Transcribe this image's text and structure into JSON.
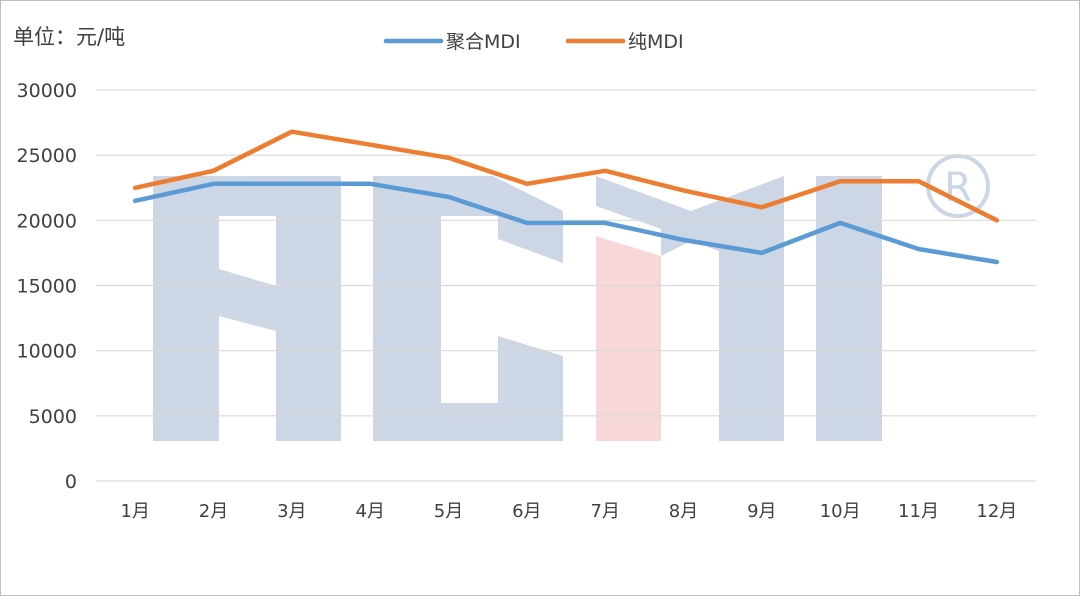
{
  "chart_data": {
    "type": "line",
    "unit_label": "单位：元/吨",
    "categories": [
      "1月",
      "2月",
      "3月",
      "4月",
      "5月",
      "6月",
      "7月",
      "8月",
      "9月",
      "10月",
      "11月",
      "12月"
    ],
    "series": [
      {
        "name": "聚合MDI",
        "color": "#5b9bd5",
        "values": [
          21500,
          22800,
          22800,
          22800,
          21800,
          19800,
          19800,
          18500,
          17500,
          19800,
          17800,
          16800
        ]
      },
      {
        "name": "纯MDI",
        "color": "#ed7d31",
        "values": [
          22500,
          23800,
          26800,
          25800,
          24800,
          22800,
          23800,
          22300,
          21000,
          23000,
          23000,
          20000
        ]
      }
    ],
    "ylim": [
      0,
      30000
    ],
    "yticks": [
      0,
      5000,
      10000,
      15000,
      20000,
      25000,
      30000
    ],
    "grid": true,
    "legend_position": "top-center",
    "watermark_text": "ACM ®",
    "gridline_color": "#d9d9d9"
  }
}
